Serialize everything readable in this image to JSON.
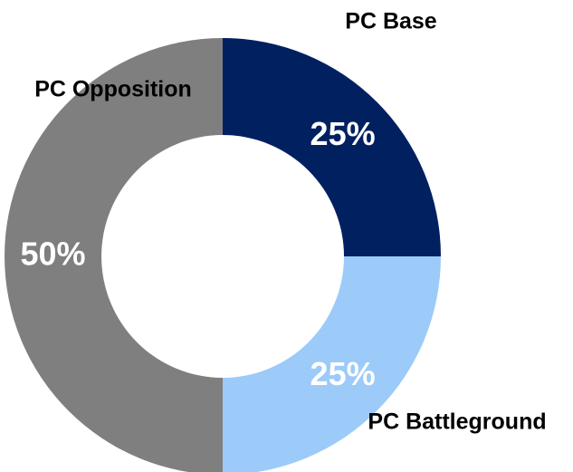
{
  "chart_data": {
    "type": "pie",
    "categories": [
      "PC Base",
      "PC Battleground",
      "PC Opposition"
    ],
    "values": [
      25,
      25,
      50
    ],
    "value_labels": [
      "25%",
      "25%",
      "50%"
    ],
    "colors": [
      "#002060",
      "#9dcbf9",
      "#7f7f7f"
    ],
    "donut": true
  }
}
